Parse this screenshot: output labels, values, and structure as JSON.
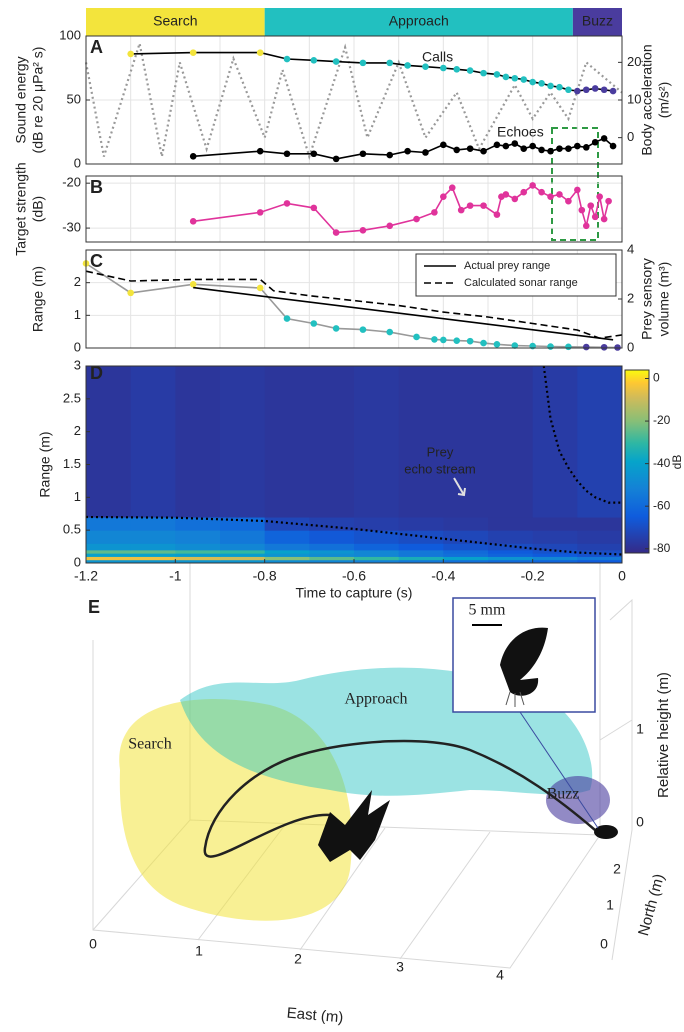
{
  "chart_data": [
    {
      "type": "line",
      "panel_label": "A",
      "phases": [
        {
          "name": "Search",
          "start": -1.2,
          "end": -0.8,
          "color": "#f3e43c"
        },
        {
          "name": "Approach",
          "start": -0.8,
          "end": -0.11,
          "color": "#22c0c0"
        },
        {
          "name": "Buzz",
          "start": -0.11,
          "end": 0,
          "color": "#4a3c9e"
        }
      ],
      "xlim": [
        -1.2,
        0
      ],
      "xticks": [
        -1.2,
        -1.1,
        -1,
        -0.9,
        -0.8,
        -0.7,
        -0.6,
        -0.5,
        -0.4,
        -0.3,
        -0.2,
        -0.1,
        0
      ],
      "ylim": [
        0,
        100
      ],
      "yticks": [
        0,
        50,
        100
      ],
      "y2lim": [
        -7,
        27
      ],
      "y2ticks": [
        0,
        10,
        20
      ],
      "ylabel": [
        "Sound energy",
        "(dB re 20 μPa² s)"
      ],
      "y2label": [
        "Body acceleration",
        "(m/s²)"
      ],
      "grid": true,
      "legend": false,
      "series": [
        {
          "axis": "y2",
          "color": "#999999",
          "dash": "dotted",
          "marker": null,
          "x": [
            -1.2,
            -1.16,
            -1.08,
            -1.03,
            -0.99,
            -0.93,
            -0.87,
            -0.8,
            -0.76,
            -0.7,
            -0.62,
            -0.57,
            -0.5,
            -0.44,
            -0.37,
            -0.32,
            -0.24,
            -0.2,
            -0.16,
            -0.12,
            -0.08,
            0
          ],
          "values": [
            20,
            -5,
            25,
            -5,
            20,
            -3,
            21,
            0,
            18,
            -5,
            24,
            0,
            20,
            0,
            12,
            -3,
            14,
            5,
            12,
            5,
            20,
            12
          ]
        },
        {
          "name": "Calls",
          "color": "#000000",
          "dash": "solid",
          "marker": "phase",
          "x": [
            -1.1,
            -0.96,
            -0.81,
            -0.75,
            -0.69,
            -0.64,
            -0.58,
            -0.52,
            -0.48,
            -0.44,
            -0.4,
            -0.37,
            -0.34,
            -0.31,
            -0.28,
            -0.26,
            -0.24,
            -0.22,
            -0.2,
            -0.18,
            -0.16,
            -0.14,
            -0.12,
            -0.1,
            -0.08,
            -0.06,
            -0.04,
            -0.02
          ],
          "values": [
            86,
            87,
            87,
            82,
            81,
            80,
            79,
            79,
            77,
            76,
            75,
            74,
            73,
            71,
            70,
            68,
            67,
            66,
            64,
            63,
            61,
            60,
            58,
            57,
            58,
            59,
            58,
            57
          ]
        },
        {
          "name": "Echoes",
          "color": "#000000",
          "dash": "solid",
          "marker": "#000000",
          "x": [
            -0.96,
            -0.81,
            -0.75,
            -0.69,
            -0.64,
            -0.58,
            -0.52,
            -0.48,
            -0.44,
            -0.4,
            -0.37,
            -0.34,
            -0.31,
            -0.28,
            -0.26,
            -0.24,
            -0.22,
            -0.2,
            -0.18,
            -0.16,
            -0.14,
            -0.12,
            -0.1,
            -0.08,
            -0.06,
            -0.04,
            -0.02
          ],
          "values": [
            6,
            10,
            8,
            8,
            4,
            8,
            7,
            10,
            9,
            15,
            11,
            12,
            10,
            15,
            14,
            16,
            12,
            14,
            11,
            10,
            12,
            12,
            14,
            13,
            17,
            20,
            14
          ]
        }
      ]
    },
    {
      "type": "line",
      "panel_label": "B",
      "xlim": [
        -1.2,
        0
      ],
      "xticks": [
        -1.2,
        -1.1,
        -1,
        -0.9,
        -0.8,
        -0.7,
        -0.6,
        -0.5,
        -0.4,
        -0.3,
        -0.2,
        -0.1,
        0
      ],
      "ylim": [
        -33.1,
        -18.4
      ],
      "yticks": [
        -30,
        -20
      ],
      "ylabel": [
        "Target strength",
        "(dB)"
      ],
      "grid": true,
      "legend": false,
      "series": [
        {
          "color": "#e0339b",
          "dash": "solid",
          "marker": "#e0339b",
          "x": [
            -0.96,
            -0.81,
            -0.75,
            -0.69,
            -0.64,
            -0.58,
            -0.52,
            -0.46,
            -0.42,
            -0.4,
            -0.38,
            -0.36,
            -0.34,
            -0.31,
            -0.28,
            -0.27,
            -0.26,
            -0.24,
            -0.22,
            -0.2,
            -0.18,
            -0.16,
            -0.14,
            -0.12,
            -0.1,
            -0.09,
            -0.08,
            -0.07,
            -0.06,
            -0.05,
            -0.04,
            -0.03
          ],
          "values": [
            -28.5,
            -26.5,
            -24.5,
            -25.5,
            -31,
            -30.5,
            -29.5,
            -28,
            -26.5,
            -23,
            -21,
            -26,
            -25,
            -25,
            -27,
            -23,
            -22.5,
            -23.5,
            -22,
            -20.5,
            -22,
            -23,
            -22.5,
            -24,
            -21.5,
            -26,
            -29.5,
            -25,
            -27.5,
            -23,
            -28,
            -24
          ]
        }
      ]
    },
    {
      "type": "line",
      "panel_label": "C",
      "xlim": [
        -1.2,
        0
      ],
      "xticks": [
        -1.2,
        -1.1,
        -1,
        -0.9,
        -0.8,
        -0.7,
        -0.6,
        -0.5,
        -0.4,
        -0.3,
        -0.2,
        -0.1,
        0
      ],
      "ylim": [
        0,
        3
      ],
      "yticks": [
        0,
        1,
        2
      ],
      "y2lim": [
        0,
        4
      ],
      "y2ticks": [
        0,
        2,
        4
      ],
      "ylabel": [
        "Range (m)"
      ],
      "y2label": [
        "Prey sensory",
        "volume (m³)"
      ],
      "grid": true,
      "legend": "upper right",
      "series": [
        {
          "axis": "y2",
          "color": "#999999",
          "dash": "solid",
          "marker": "phase",
          "x": [
            -1.2,
            -1.1,
            -0.96,
            -0.81,
            -0.75,
            -0.69,
            -0.64,
            -0.58,
            -0.52,
            -0.46,
            -0.42,
            -0.4,
            -0.37,
            -0.34,
            -0.31,
            -0.28,
            -0.24,
            -0.2,
            -0.16,
            -0.12,
            -0.08,
            -0.04,
            -0.01
          ],
          "values": [
            3.45,
            2.25,
            2.6,
            2.45,
            1.2,
            1.0,
            0.8,
            0.75,
            0.65,
            0.45,
            0.35,
            0.33,
            0.3,
            0.28,
            0.2,
            0.15,
            0.1,
            0.08,
            0.06,
            0.05,
            0.04,
            0.03,
            0.02
          ]
        },
        {
          "name": "Actual prey range",
          "color": "#000000",
          "dash": "solid",
          "marker": null,
          "x": [
            -0.96,
            -0.02
          ],
          "values": [
            1.85,
            0.25
          ]
        },
        {
          "name": "Calculated sonar range",
          "color": "#000000",
          "dash": "dashed",
          "marker": null,
          "x": [
            -1.2,
            -1.1,
            -0.96,
            -0.81,
            -0.78,
            -0.7,
            -0.6,
            -0.5,
            -0.4,
            -0.3,
            -0.2,
            -0.1,
            -0.05,
            0
          ],
          "values": [
            2.35,
            2.05,
            2.1,
            2.1,
            1.75,
            1.6,
            1.45,
            1.3,
            1.1,
            0.95,
            0.75,
            0.55,
            0.3,
            0.4
          ]
        }
      ]
    },
    {
      "type": "heatmap",
      "panel_label": "D",
      "xlim": [
        -1.2,
        0
      ],
      "xticks": [
        -1.2,
        -1,
        -0.8,
        -0.6,
        -0.4,
        -0.2,
        0
      ],
      "ylim": [
        0,
        3
      ],
      "yticks": [
        0,
        0.5,
        1,
        1.5,
        2,
        2.5,
        3
      ],
      "xlabel": "Time to capture (s)",
      "ylabel": [
        "Range (m)"
      ],
      "x_edges": [
        -1.2,
        -1.1,
        -1,
        -0.9,
        -0.8,
        -0.7,
        -0.6,
        -0.5,
        -0.4,
        -0.3,
        -0.2,
        -0.1,
        0
      ],
      "y_edges": [
        0,
        0.05,
        0.1,
        0.15,
        0.2,
        0.3,
        0.5,
        0.7,
        3
      ],
      "z": [
        [
          -45,
          -45,
          -45,
          -45,
          -48,
          -50,
          -52,
          -55,
          -58,
          -60,
          -62,
          -65
        ],
        [
          -5,
          -5,
          -8,
          -10,
          -20,
          -25,
          -30,
          -35,
          -40,
          -45,
          -50,
          -55
        ],
        [
          -40,
          -40,
          -42,
          -42,
          -45,
          -48,
          -50,
          -55,
          -58,
          -62,
          -65,
          -68
        ],
        [
          -25,
          -25,
          -28,
          -30,
          -40,
          -45,
          -50,
          -55,
          -60,
          -65,
          -68,
          -70
        ],
        [
          -45,
          -45,
          -48,
          -50,
          -55,
          -58,
          -62,
          -65,
          -68,
          -70,
          -72,
          -74
        ],
        [
          -50,
          -50,
          -52,
          -55,
          -62,
          -66,
          -68,
          -70,
          -72,
          -74,
          -75,
          -76
        ],
        [
          -55,
          -55,
          -58,
          -60,
          -72,
          -74,
          -75,
          -76,
          -77,
          -78,
          -78,
          -78
        ],
        [
          -78,
          -76,
          -78,
          -77,
          -78,
          -78,
          -77,
          -78,
          -78,
          -78,
          -76,
          -74
        ]
      ],
      "clim": [
        -82,
        4
      ],
      "cticks": [
        0,
        -20,
        -40,
        -60,
        -80
      ],
      "colorbar_label": "dB",
      "annotation": [
        "Prey",
        "echo stream"
      ],
      "series": [
        {
          "color": "#000000",
          "dash": "dotted",
          "marker": null,
          "x": [
            -1.2,
            -1,
            -0.8,
            -0.6,
            -0.4,
            -0.2,
            -0.1,
            0
          ],
          "values": [
            0.7,
            0.69,
            0.64,
            0.52,
            0.37,
            0.22,
            0.16,
            0.13
          ]
        },
        {
          "color": "#000000",
          "dash": "dotted",
          "marker": null,
          "x": [
            -0.175,
            -0.16,
            -0.14,
            -0.12,
            -0.1,
            -0.08,
            -0.06,
            -0.03,
            0
          ],
          "values": [
            3,
            2.2,
            1.7,
            1.45,
            1.25,
            1.1,
            1.0,
            0.92,
            0.92
          ]
        }
      ]
    },
    {
      "type": "3d",
      "panel_label": "E",
      "xlabel": "East (m)",
      "ylabel": "North (m)",
      "zlabel": "Relative height (m)",
      "xticks": [
        0,
        1,
        2,
        3,
        4
      ],
      "yticks": [
        0,
        1,
        2
      ],
      "zticks": [
        0,
        1
      ],
      "scale_bar": "5 mm"
    }
  ]
}
